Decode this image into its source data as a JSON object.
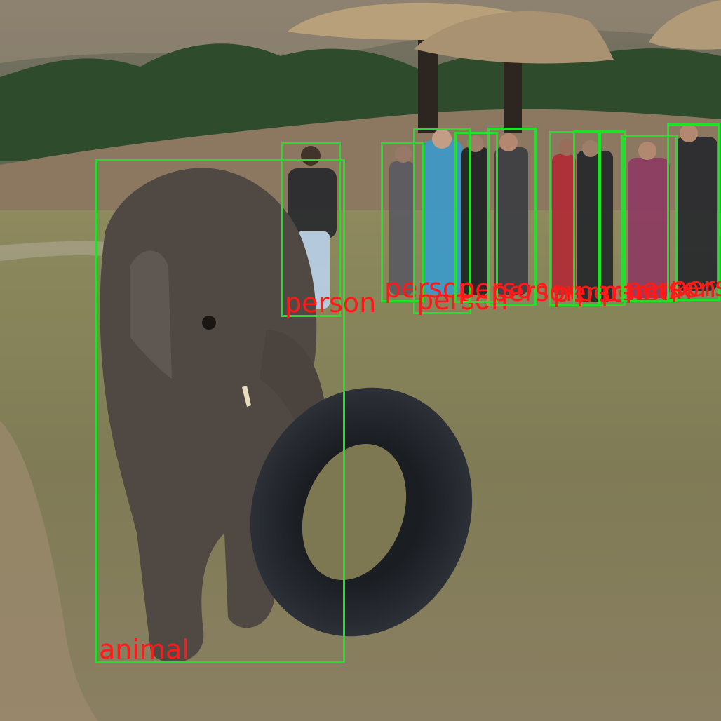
{
  "image": {
    "detections": [
      {
        "label": "animal",
        "kind": "elephant"
      },
      {
        "label": "person"
      },
      {
        "label": "person"
      },
      {
        "label": "person"
      },
      {
        "label": "person"
      },
      {
        "label": "person"
      },
      {
        "label": "person"
      },
      {
        "label": "person"
      },
      {
        "label": "person"
      },
      {
        "label": "person"
      },
      {
        "label": "person"
      }
    ]
  }
}
